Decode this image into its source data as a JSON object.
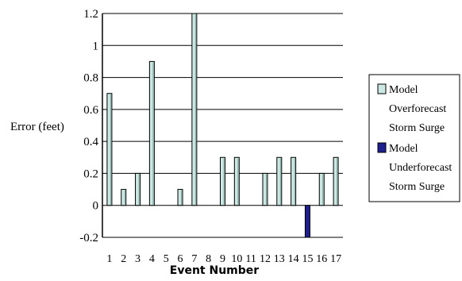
{
  "chart_data": {
    "type": "bar",
    "title": "",
    "xlabel": "Event Number",
    "ylabel": "Error (feet)",
    "categories": [
      "1",
      "2",
      "3",
      "4",
      "5",
      "6",
      "7",
      "8",
      "9",
      "10",
      "11",
      "12",
      "13",
      "14",
      "15",
      "16",
      "17"
    ],
    "ylim": [
      -0.2,
      1.2
    ],
    "yticks": [
      1.2,
      1,
      0.8,
      0.6,
      0.4,
      0.2,
      0,
      -0.2
    ],
    "ytick_labels": [
      "1.2",
      "1",
      "0.8",
      "0.6",
      "0.4",
      "0.2",
      "0",
      "-0.2"
    ],
    "grid": true,
    "legend_position": "right",
    "series": [
      {
        "name_lines": [
          "Model",
          "Overforecast",
          "Storm Surge"
        ],
        "color": "#cde8e2",
        "values": [
          0.7,
          0.1,
          0.2,
          0.9,
          null,
          0.1,
          1.2,
          null,
          0.3,
          0.3,
          null,
          0.2,
          0.3,
          0.3,
          null,
          0.2,
          0.3
        ]
      },
      {
        "name_lines": [
          "Model",
          "Underforecast",
          "Storm Surge"
        ],
        "color": "#1f1f8f",
        "values": [
          null,
          null,
          null,
          null,
          null,
          null,
          null,
          null,
          null,
          null,
          null,
          null,
          null,
          null,
          -0.2,
          null,
          null
        ]
      }
    ]
  }
}
